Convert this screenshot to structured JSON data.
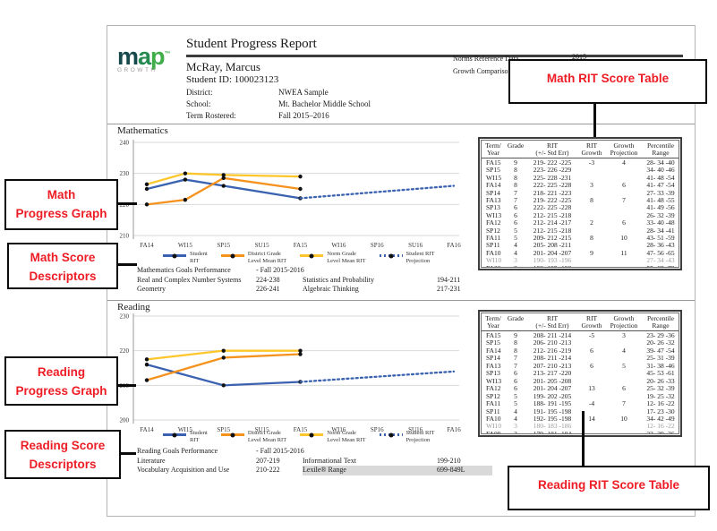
{
  "logo": {
    "word_m": "m",
    "word_a": "a",
    "word_p": "p",
    "tm": "™",
    "sub": "GROWTH"
  },
  "header": {
    "title": "Student Progress Report",
    "student_name": "McRay, Marcus",
    "student_id": "Student ID: 100023123",
    "info_rows": [
      {
        "label": "District:",
        "value": "NWEA Sample"
      },
      {
        "label": "School:",
        "value": "Mt. Bachelor Middle School"
      },
      {
        "label": "Term Rostered:",
        "value": "Fall 2015–2016"
      }
    ],
    "meta": [
      {
        "label": "Norms Reference Data",
        "value": "2015"
      },
      {
        "label": "Growth Comparison",
        "value": ""
      }
    ]
  },
  "math": {
    "section_label": "Mathematics",
    "goals": {
      "heading": "Mathematics Goals Performance",
      "term": "- Fall 2015-2016",
      "rows": [
        {
          "l1": "Real and Complex Number Systems",
          "v1": "224-238",
          "l2": "Statistics and Probability",
          "v2": "194-211"
        },
        {
          "l1": "Geometry",
          "v1": "226-241",
          "l2": "Algebraic Thinking",
          "v2": "217-231"
        }
      ]
    },
    "table": {
      "headers": [
        [
          "Term/",
          "Year"
        ],
        [
          "",
          "Grade"
        ],
        [
          "RIT",
          "(+/- Std Err)"
        ],
        [
          "RIT",
          "Growth"
        ],
        [
          "Growth",
          "Projection"
        ],
        [
          "Percentile",
          "Range"
        ]
      ],
      "muted_terms": [
        "WI10"
      ],
      "rows": [
        [
          "FA15",
          "9",
          "219- 222 -225",
          "-3",
          "4",
          "28- 34 -40"
        ],
        [
          "SP15",
          "8",
          "223- 226 -229",
          "",
          "",
          "34- 40 -46"
        ],
        [
          "WI15",
          "8",
          "225- 228 -231",
          "",
          "",
          "41- 48 -54"
        ],
        [
          "FA14",
          "8",
          "222- 225 -228",
          "3",
          "6",
          "41- 47 -54"
        ],
        [
          "SP14",
          "7",
          "218- 221 -223",
          "",
          "",
          "27- 33 -39"
        ],
        [
          "FA13",
          "7",
          "219- 222 -225",
          "8",
          "7",
          "41- 48 -55"
        ],
        [
          "SP13",
          "6",
          "222- 225 -228",
          "",
          "",
          "41- 49 -56"
        ],
        [
          "WI13",
          "6",
          "212- 215 -218",
          "",
          "",
          "26- 32 -39"
        ],
        [
          "FA12",
          "6",
          "212- 214 -217",
          "2",
          "6",
          "33- 40 -48"
        ],
        [
          "SP12",
          "5",
          "212- 215 -218",
          "",
          "",
          "28- 34 -41"
        ],
        [
          "FA11",
          "5",
          "209- 212 -215",
          "8",
          "10",
          "43- 51 -59"
        ],
        [
          "SP11",
          "4",
          "205- 208 -211",
          "",
          "",
          "28- 36 -43"
        ],
        [
          "FA10",
          "4",
          "201- 204 -207",
          "9",
          "11",
          "47- 56 -65"
        ],
        [
          "WI10",
          "3",
          "190- 193 -196",
          "",
          "",
          "27- 34 -43"
        ],
        [
          "FA09",
          "3",
          "192- 195 -198",
          "",
          "",
          "55- 63 -72"
        ]
      ]
    }
  },
  "reading": {
    "section_label": "Reading",
    "goals": {
      "heading": "Reading Goals Performance",
      "term": "- Fall 2015-2016",
      "rows": [
        {
          "l1": "Literature",
          "v1": "207-219",
          "l2": "Informational Text",
          "v2": "199-210"
        },
        {
          "l1": "Vocabulary Acquisition and Use",
          "v1": "210-222",
          "l2": "Lexile® Range",
          "v2": "699-849L"
        }
      ]
    },
    "table": {
      "headers": [
        [
          "Term/",
          "Year"
        ],
        [
          "",
          "Grade"
        ],
        [
          "RIT",
          "(+/- Std Err)"
        ],
        [
          "RIT",
          "Growth"
        ],
        [
          "Growth",
          "Projection"
        ],
        [
          "Percentile",
          "Range"
        ]
      ],
      "muted_terms": [
        "WI10"
      ],
      "rows": [
        [
          "FA15",
          "9",
          "208- 211 -214",
          "-5",
          "3",
          "23- 29 -36"
        ],
        [
          "SP15",
          "8",
          "206- 210 -213",
          "",
          "",
          "20- 26 -32"
        ],
        [
          "FA14",
          "8",
          "212- 216 -219",
          "6",
          "4",
          "39- 47 -54"
        ],
        [
          "SP14",
          "7",
          "208- 211 -214",
          "",
          "",
          "25- 31 -39"
        ],
        [
          "FA13",
          "7",
          "207- 210 -213",
          "6",
          "5",
          "31- 38 -46"
        ],
        [
          "SP13",
          "6",
          "213- 217 -220",
          "",
          "",
          "45- 53 -61"
        ],
        [
          "WI13",
          "6",
          "201- 205 -208",
          "",
          "",
          "20- 26 -33"
        ],
        [
          "FA12",
          "6",
          "201- 204 -207",
          "13",
          "6",
          "25- 32 -39"
        ],
        [
          "SP12",
          "5",
          "199- 202 -205",
          "",
          "",
          "19- 25 -32"
        ],
        [
          "FA11",
          "5",
          "188- 191 -195",
          "-4",
          "7",
          "12- 16 -22"
        ],
        [
          "SP11",
          "4",
          "191- 195 -198",
          "",
          "",
          "17- 23 -30"
        ],
        [
          "FA10",
          "4",
          "192- 195 -198",
          "14",
          "10",
          "34- 42 -49"
        ],
        [
          "WI10",
          "3",
          "180- 183 -186",
          "",
          "",
          "12- 16 -22"
        ],
        [
          "FA09",
          "3",
          "179- 181 -184",
          "",
          "",
          "23- 29 -36"
        ]
      ]
    }
  },
  "legend": {
    "items": [
      {
        "line1": "Student",
        "line2": "RIT",
        "style": "solid",
        "color": "#3a62b0"
      },
      {
        "line1": "District Grade",
        "line2": "Level Mean RIT",
        "style": "solid",
        "color": "#f5921e"
      },
      {
        "line1": "Norm Grade",
        "line2": "Level Mean RIT",
        "style": "solid",
        "color": "#fdc62a"
      },
      {
        "line1": "Student RIT",
        "line2": "Projection",
        "style": "dotted",
        "color": "#3a62b0"
      }
    ]
  },
  "chart_data": [
    {
      "type": "line",
      "title": "Mathematics",
      "ylabel": "RIT",
      "ylim": [
        210,
        240
      ],
      "yticks": [
        210,
        220,
        230,
        240
      ],
      "grid": true,
      "x": [
        "FA14",
        "WI15",
        "SP15",
        "SU15",
        "FA15",
        "WI16",
        "SP16",
        "SU16",
        "FA16"
      ],
      "series": [
        {
          "name": "Student RIT",
          "color": "#3a62b0",
          "dash": "solid",
          "values": [
            225,
            228,
            226,
            null,
            222,
            null,
            null,
            null,
            null
          ]
        },
        {
          "name": "District Grade Level Mean RIT",
          "color": "#f5921e",
          "dash": "solid",
          "values": [
            220,
            221.5,
            228.5,
            null,
            225,
            null,
            null,
            null,
            null
          ]
        },
        {
          "name": "Norm Grade Level Mean RIT",
          "color": "#fdc62a",
          "dash": "solid",
          "values": [
            226.5,
            230,
            229.5,
            null,
            229,
            null,
            null,
            null,
            null
          ]
        },
        {
          "name": "Student RIT Projection",
          "color": "#3a62b0",
          "dash": "dotted",
          "values": [
            null,
            null,
            null,
            null,
            222,
            null,
            null,
            null,
            226
          ]
        }
      ]
    },
    {
      "type": "line",
      "title": "Reading",
      "ylabel": "RIT",
      "ylim": [
        200,
        230
      ],
      "yticks": [
        200,
        210,
        220,
        230
      ],
      "grid": true,
      "x": [
        "FA14",
        "WI15",
        "SP15",
        "SU15",
        "FA15",
        "WI16",
        "SP16",
        "SU16",
        "FA16"
      ],
      "series": [
        {
          "name": "Student RIT",
          "color": "#3a62b0",
          "dash": "solid",
          "values": [
            216,
            null,
            210,
            null,
            211,
            null,
            null,
            null,
            null
          ]
        },
        {
          "name": "District Grade Level Mean RIT",
          "color": "#f5921e",
          "dash": "solid",
          "values": [
            211.5,
            null,
            218,
            null,
            219,
            null,
            null,
            null,
            null
          ]
        },
        {
          "name": "Norm Grade Level Mean RIT",
          "color": "#fdc62a",
          "dash": "solid",
          "values": [
            217.5,
            null,
            220,
            null,
            220,
            null,
            null,
            null,
            null
          ]
        },
        {
          "name": "Student RIT Projection",
          "color": "#3a62b0",
          "dash": "dotted",
          "values": [
            null,
            null,
            null,
            null,
            211,
            null,
            null,
            null,
            214
          ]
        }
      ]
    }
  ],
  "annotations": {
    "text_color": "#ee1c25",
    "math_table_callout": "Math RIT Score Table",
    "math_graph_callout": [
      "Math",
      "Progress Graph"
    ],
    "math_desc_callout": [
      "Math Score",
      "Descriptors"
    ],
    "reading_graph_callout": [
      "Reading",
      "Progress Graph"
    ],
    "reading_desc_callout": [
      "Reading Score",
      "Descriptors"
    ],
    "reading_table_callout": "Reading RIT Score Table"
  }
}
